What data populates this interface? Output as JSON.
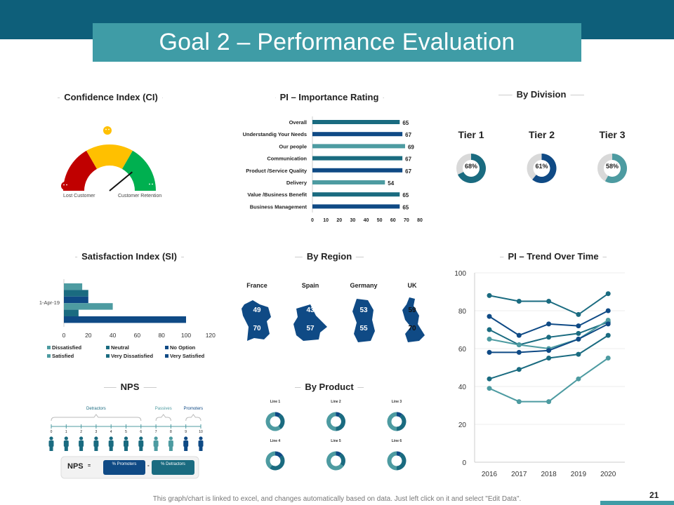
{
  "title": "Goal 2 – Performance Evaluation",
  "colors": {
    "teal": "#1a6b80",
    "dark_blue": "#0f4a85",
    "light_teal": "#4d9ba1",
    "red": "#c00000",
    "yellow": "#ffc000",
    "green": "#00b050"
  },
  "sections": {
    "ci": "Confidence Index (CI)",
    "pi": "PI – Importance Rating",
    "division": "By Division",
    "si": "Satisfaction Index (SI)",
    "region": "By Region",
    "trend": "PI – Trend Over Time",
    "nps": "NPS",
    "product": "By Product"
  },
  "gauge": {
    "left_label": "Lost Customer",
    "right_label": "Customer Retention",
    "needle_fraction": 0.78
  },
  "chart_data": [
    {
      "type": "bar",
      "title": "PI – Importance Rating",
      "categories": [
        "Overall",
        "Understandig Your Needs",
        "Our people",
        "Communication",
        "Product /Service Quality",
        "Delivery",
        "Value /Business Benefit",
        "Business Management"
      ],
      "values": [
        65,
        67,
        69,
        67,
        67,
        54,
        65,
        65
      ],
      "xlim": [
        0,
        80
      ],
      "ticks": [
        "0",
        "10",
        "20",
        "30",
        "40",
        "50",
        "60",
        "70",
        "80"
      ]
    },
    {
      "type": "bar",
      "title": "Satisfaction Index (SI)",
      "category": "1-Apr-19",
      "series": [
        {
          "name": "Dissatisfied",
          "value": 15
        },
        {
          "name": "Neutral",
          "value": 20
        },
        {
          "name": "No Option",
          "value": 20
        },
        {
          "name": "Satisfied",
          "value": 40
        },
        {
          "name": "Very Dissatisfied",
          "value": 12
        },
        {
          "name": "Very Satisfied",
          "value": 100
        }
      ],
      "xlim": [
        0,
        120
      ],
      "ticks": [
        "0",
        "20",
        "40",
        "60",
        "80",
        "100",
        "120"
      ]
    },
    {
      "type": "line",
      "title": "PI – Trend Over Time",
      "x": [
        "2016",
        "2017",
        "2018",
        "2019",
        "2020"
      ],
      "ylim": [
        0,
        100
      ],
      "yticks": [
        "0",
        "20",
        "40",
        "60",
        "80",
        "100"
      ],
      "series": [
        [
          88,
          85,
          85,
          78,
          89
        ],
        [
          77,
          67,
          73,
          72,
          80
        ],
        [
          70,
          62,
          66,
          68,
          74
        ],
        [
          65,
          62,
          60,
          65,
          75
        ],
        [
          58,
          58,
          59,
          65,
          73
        ],
        [
          44,
          49,
          55,
          57,
          67
        ],
        [
          39,
          32,
          32,
          44,
          55
        ]
      ]
    },
    {
      "type": "pie",
      "title": "By Division",
      "items": [
        {
          "label": "Tier 1",
          "value": 68,
          "text": "68%"
        },
        {
          "label": "Tier 2",
          "value": 61,
          "text": "61%"
        },
        {
          "label": "Tier 3",
          "value": 58,
          "text": "58%"
        }
      ]
    },
    {
      "type": "pie",
      "title": "By Product",
      "items": [
        {
          "label": "Line 1",
          "values": [
            10,
            30,
            60
          ]
        },
        {
          "label": "Line 2",
          "values": [
            8,
            42,
            50
          ]
        },
        {
          "label": "Line 3",
          "values": [
            10,
            40,
            50
          ]
        },
        {
          "label": "Line 4",
          "values": [
            15,
            45,
            40
          ]
        },
        {
          "label": "Line 5",
          "values": [
            10,
            25,
            65
          ]
        },
        {
          "label": "Line 6",
          "values": [
            8,
            42,
            50
          ]
        }
      ]
    }
  ],
  "regions": [
    {
      "name": "France",
      "top": "49",
      "bottom": "70"
    },
    {
      "name": "Spain",
      "top": "43",
      "bottom": "57"
    },
    {
      "name": "Germany",
      "top": "53",
      "bottom": "55"
    },
    {
      "name": "UK",
      "top": "59",
      "bottom": "70"
    }
  ],
  "nps": {
    "scale": [
      "0",
      "1",
      "2",
      "3",
      "4",
      "5",
      "6",
      "7",
      "8",
      "9",
      "10"
    ],
    "detractors": "Detractors",
    "passives": "Passives",
    "promoters": "Promoters",
    "formula_label": "NPS",
    "equals": "=",
    "minus": "-",
    "promoters_box": "% Promoters",
    "detractors_box": "% Detractors"
  },
  "footer": "This graph/chart is linked to excel, and changes automatically  based on data. Just left click on it and select \"Edit Data\".",
  "page_number": "21"
}
